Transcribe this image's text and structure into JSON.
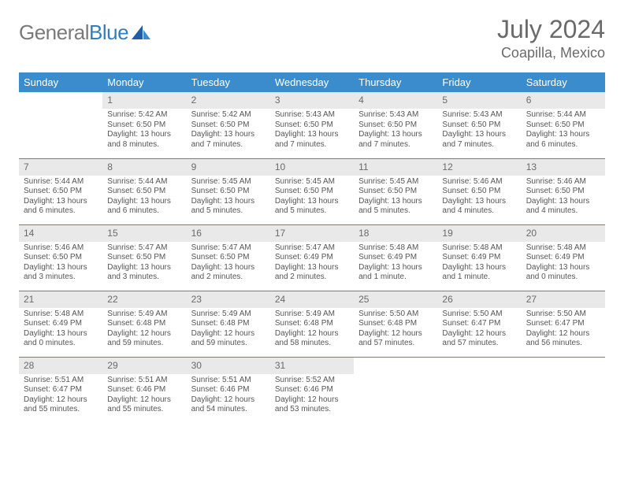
{
  "brand": {
    "part1": "General",
    "part2": "Blue"
  },
  "title": "July 2024",
  "location": "Coapilla, Mexico",
  "colors": {
    "header_bg": "#3b8ccc",
    "header_fg": "#ffffff",
    "daynum_bg": "#e9e9e9",
    "text": "#555555",
    "rule": "#3b8ccc"
  },
  "weekdays": [
    "Sunday",
    "Monday",
    "Tuesday",
    "Wednesday",
    "Thursday",
    "Friday",
    "Saturday"
  ],
  "weeks": [
    [
      null,
      {
        "n": "1",
        "sr": "5:42 AM",
        "ss": "6:50 PM",
        "dl": "13 hours and 8 minutes."
      },
      {
        "n": "2",
        "sr": "5:42 AM",
        "ss": "6:50 PM",
        "dl": "13 hours and 7 minutes."
      },
      {
        "n": "3",
        "sr": "5:43 AM",
        "ss": "6:50 PM",
        "dl": "13 hours and 7 minutes."
      },
      {
        "n": "4",
        "sr": "5:43 AM",
        "ss": "6:50 PM",
        "dl": "13 hours and 7 minutes."
      },
      {
        "n": "5",
        "sr": "5:43 AM",
        "ss": "6:50 PM",
        "dl": "13 hours and 7 minutes."
      },
      {
        "n": "6",
        "sr": "5:44 AM",
        "ss": "6:50 PM",
        "dl": "13 hours and 6 minutes."
      }
    ],
    [
      {
        "n": "7",
        "sr": "5:44 AM",
        "ss": "6:50 PM",
        "dl": "13 hours and 6 minutes."
      },
      {
        "n": "8",
        "sr": "5:44 AM",
        "ss": "6:50 PM",
        "dl": "13 hours and 6 minutes."
      },
      {
        "n": "9",
        "sr": "5:45 AM",
        "ss": "6:50 PM",
        "dl": "13 hours and 5 minutes."
      },
      {
        "n": "10",
        "sr": "5:45 AM",
        "ss": "6:50 PM",
        "dl": "13 hours and 5 minutes."
      },
      {
        "n": "11",
        "sr": "5:45 AM",
        "ss": "6:50 PM",
        "dl": "13 hours and 5 minutes."
      },
      {
        "n": "12",
        "sr": "5:46 AM",
        "ss": "6:50 PM",
        "dl": "13 hours and 4 minutes."
      },
      {
        "n": "13",
        "sr": "5:46 AM",
        "ss": "6:50 PM",
        "dl": "13 hours and 4 minutes."
      }
    ],
    [
      {
        "n": "14",
        "sr": "5:46 AM",
        "ss": "6:50 PM",
        "dl": "13 hours and 3 minutes."
      },
      {
        "n": "15",
        "sr": "5:47 AM",
        "ss": "6:50 PM",
        "dl": "13 hours and 3 minutes."
      },
      {
        "n": "16",
        "sr": "5:47 AM",
        "ss": "6:50 PM",
        "dl": "13 hours and 2 minutes."
      },
      {
        "n": "17",
        "sr": "5:47 AM",
        "ss": "6:49 PM",
        "dl": "13 hours and 2 minutes."
      },
      {
        "n": "18",
        "sr": "5:48 AM",
        "ss": "6:49 PM",
        "dl": "13 hours and 1 minute."
      },
      {
        "n": "19",
        "sr": "5:48 AM",
        "ss": "6:49 PM",
        "dl": "13 hours and 1 minute."
      },
      {
        "n": "20",
        "sr": "5:48 AM",
        "ss": "6:49 PM",
        "dl": "13 hours and 0 minutes."
      }
    ],
    [
      {
        "n": "21",
        "sr": "5:48 AM",
        "ss": "6:49 PM",
        "dl": "13 hours and 0 minutes."
      },
      {
        "n": "22",
        "sr": "5:49 AM",
        "ss": "6:48 PM",
        "dl": "12 hours and 59 minutes."
      },
      {
        "n": "23",
        "sr": "5:49 AM",
        "ss": "6:48 PM",
        "dl": "12 hours and 59 minutes."
      },
      {
        "n": "24",
        "sr": "5:49 AM",
        "ss": "6:48 PM",
        "dl": "12 hours and 58 minutes."
      },
      {
        "n": "25",
        "sr": "5:50 AM",
        "ss": "6:48 PM",
        "dl": "12 hours and 57 minutes."
      },
      {
        "n": "26",
        "sr": "5:50 AM",
        "ss": "6:47 PM",
        "dl": "12 hours and 57 minutes."
      },
      {
        "n": "27",
        "sr": "5:50 AM",
        "ss": "6:47 PM",
        "dl": "12 hours and 56 minutes."
      }
    ],
    [
      {
        "n": "28",
        "sr": "5:51 AM",
        "ss": "6:47 PM",
        "dl": "12 hours and 55 minutes."
      },
      {
        "n": "29",
        "sr": "5:51 AM",
        "ss": "6:46 PM",
        "dl": "12 hours and 55 minutes."
      },
      {
        "n": "30",
        "sr": "5:51 AM",
        "ss": "6:46 PM",
        "dl": "12 hours and 54 minutes."
      },
      {
        "n": "31",
        "sr": "5:52 AM",
        "ss": "6:46 PM",
        "dl": "12 hours and 53 minutes."
      },
      null,
      null,
      null
    ]
  ],
  "labels": {
    "sunrise": "Sunrise:",
    "sunset": "Sunset:",
    "daylight": "Daylight:"
  }
}
